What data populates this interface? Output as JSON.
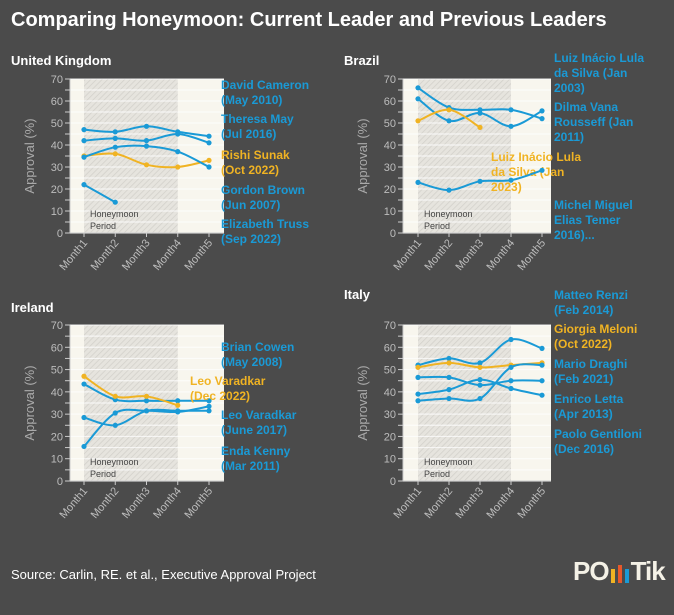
{
  "title": "Comparing Honeymoon: Current Leader and Previous Leaders",
  "source": "Source: Carlin, RE. et al., Executive Approval Project",
  "logo": {
    "text_left": "PO",
    "text_right": "Tik",
    "bar_colors": [
      "#f0b323",
      "#e8582a",
      "#1a9ad6"
    ]
  },
  "colors": {
    "previous": "#1a9ad6",
    "current": "#f0b323",
    "plot_bg": "#f8f6ee",
    "honeymoon_bg": "#e4e2dc"
  },
  "chart_data": [
    {
      "type": "line",
      "title": "United Kingdom",
      "xlabel": "",
      "ylabel": "Approval (%)",
      "ylim": [
        0,
        70
      ],
      "yticks": [
        "0",
        "10",
        "20",
        "30",
        "40",
        "50",
        "60",
        "70"
      ],
      "categories": [
        "Month1",
        "Month2",
        "Month3",
        "Month4",
        "Month5"
      ],
      "honeymoon": {
        "label": [
          "Honeymoon",
          "Period"
        ],
        "from": "Month1",
        "to": "Month4"
      },
      "series": [
        {
          "name": [
            "David Cameron",
            "(May 2010)"
          ],
          "current": false,
          "values": [
            47,
            46,
            48.5,
            46,
            44
          ]
        },
        {
          "name": [
            "Theresa May",
            "(Jul 2016)"
          ],
          "current": false,
          "values": [
            42,
            43,
            42,
            45,
            41
          ]
        },
        {
          "name": [
            "Rishi Sunak",
            "(Oct 2022)"
          ],
          "current": true,
          "values": [
            35,
            36,
            31,
            30,
            33
          ]
        },
        {
          "name": [
            "Gordon Brown",
            "(Jun 2007)"
          ],
          "current": false,
          "values": [
            34.5,
            39,
            39.5,
            37,
            30
          ]
        },
        {
          "name": [
            "Elizabeth Truss",
            "(Sep 2022)"
          ],
          "current": false,
          "values": [
            22,
            14,
            null,
            null,
            null
          ]
        }
      ]
    },
    {
      "type": "line",
      "title": "Brazil",
      "xlabel": "",
      "ylabel": "Approval (%)",
      "ylim": [
        0,
        70
      ],
      "yticks": [
        "0",
        "10",
        "20",
        "30",
        "40",
        "50",
        "60",
        "70"
      ],
      "categories": [
        "Month1",
        "Month2",
        "Month3",
        "Month4",
        "Month5"
      ],
      "honeymoon": {
        "label": [
          "Honeymoon",
          "Period"
        ],
        "from": "Month1",
        "to": "Month4"
      },
      "series": [
        {
          "name": [
            "Luiz Inácio Lula",
            "da Silva (Jan",
            "2003)"
          ],
          "current": false,
          "values": [
            66,
            57,
            56,
            56,
            52
          ]
        },
        {
          "name": [
            "Dilma Vana",
            "Rousseff (Jan",
            "2011)"
          ],
          "current": false,
          "values": [
            61,
            51,
            54.5,
            48.5,
            55.5
          ]
        },
        {
          "name": [
            "Luiz Inácio Lula",
            "da Silva (Jan",
            "2023)"
          ],
          "current": true,
          "values": [
            51,
            56,
            48,
            null,
            null
          ]
        },
        {
          "name": [
            "Michel Miguel",
            "Elias Temer",
            "2016)..."
          ],
          "current": false,
          "values": [
            23,
            19.5,
            23.5,
            24,
            28.5
          ]
        }
      ]
    },
    {
      "type": "line",
      "title": "Ireland",
      "xlabel": "",
      "ylabel": "Approval (%)",
      "ylim": [
        0,
        70
      ],
      "yticks": [
        "0",
        "10",
        "20",
        "30",
        "40",
        "50",
        "60",
        "70"
      ],
      "categories": [
        "Month1",
        "Month2",
        "Month3",
        "Month4",
        "Month5"
      ],
      "honeymoon": {
        "label": [
          "Honeymoon",
          "Period"
        ],
        "from": "Month1",
        "to": "Month4"
      },
      "series": [
        {
          "name": [
            "Brian Cowen",
            "(May 2008)"
          ],
          "current": false,
          "values": [
            43.5,
            36.5,
            36,
            36,
            36
          ]
        },
        {
          "name": [
            "Leo Varadkar",
            "(Dec 2022)"
          ],
          "current": true,
          "values": [
            47,
            38,
            38,
            34,
            null
          ]
        },
        {
          "name": [
            "Leo Varadkar",
            "(June 2017)"
          ],
          "current": false,
          "values": [
            15.5,
            30.5,
            31.5,
            31,
            33.5
          ]
        },
        {
          "name": [
            "Enda Kenny",
            "(Mar 2011)"
          ],
          "current": false,
          "values": [
            28.5,
            25,
            31.5,
            31.5,
            31.5
          ]
        }
      ]
    },
    {
      "type": "line",
      "title": "Italy",
      "xlabel": "",
      "ylabel": "Approval (%)",
      "ylim": [
        0,
        70
      ],
      "yticks": [
        "0",
        "10",
        "20",
        "30",
        "40",
        "50",
        "60",
        "70"
      ],
      "categories": [
        "Month1",
        "Month2",
        "Month3",
        "Month4",
        "Month5"
      ],
      "honeymoon": {
        "label": [
          "Honeymoon",
          "Period"
        ],
        "from": "Month1",
        "to": "Month4"
      },
      "series": [
        {
          "name": [
            "Matteo Renzi",
            "(Feb 2014)"
          ],
          "current": false,
          "values": [
            52,
            55,
            53,
            63.5,
            59.5
          ]
        },
        {
          "name": [
            "Giorgia Meloni",
            "(Oct 2022)"
          ],
          "current": true,
          "values": [
            51,
            53,
            51,
            52,
            53
          ]
        },
        {
          "name": [
            "Mario Draghi",
            "(Feb 2021)"
          ],
          "current": false,
          "values": [
            36,
            37,
            37,
            51,
            52
          ]
        },
        {
          "name": [
            "Enrico Letta",
            "(Apr 2013)"
          ],
          "current": false,
          "values": [
            46.5,
            46.5,
            43,
            45,
            45
          ]
        },
        {
          "name": [
            "Paolo Gentiloni",
            "(Dec 2016)"
          ],
          "current": false,
          "values": [
            39,
            41,
            45.5,
            41.5,
            38.5
          ]
        }
      ]
    }
  ]
}
